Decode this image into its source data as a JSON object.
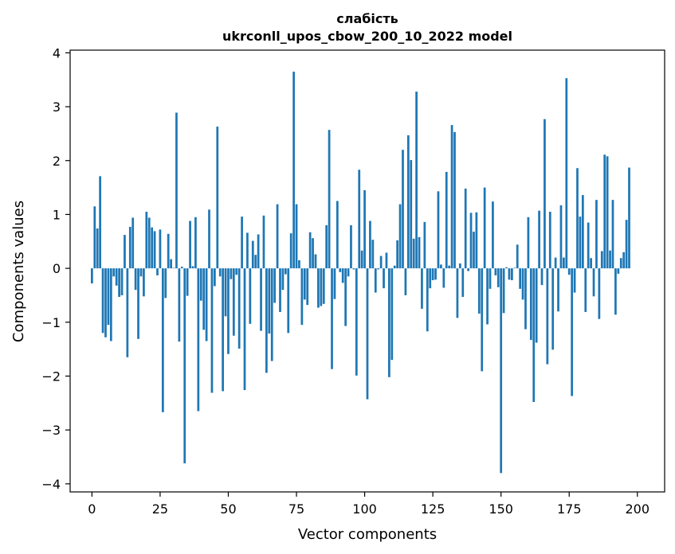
{
  "chart_data": {
    "type": "bar",
    "title_line1": "слабість",
    "title_line2": "ukrconll_upos_cbow_200_10_2022 model",
    "xlabel": "Vector components",
    "ylabel": "Components values",
    "xlim": [
      -8,
      210
    ],
    "ylim": [
      -4.15,
      4.05
    ],
    "xticks": [
      0,
      25,
      50,
      75,
      100,
      125,
      150,
      175,
      200
    ],
    "yticks": [
      4,
      3,
      2,
      1,
      0,
      -1,
      -2,
      -3,
      -4
    ],
    "ytick_labels": [
      "4",
      "3",
      "2",
      "1",
      "0",
      "−1",
      "−2",
      "−3",
      "−4"
    ],
    "grid": false,
    "bar_color": "#1f77b4",
    "values": [
      -0.28,
      1.15,
      0.74,
      1.71,
      -1.2,
      -1.28,
      -1.05,
      -1.35,
      -0.15,
      -0.32,
      -0.53,
      -0.5,
      0.62,
      -1.65,
      0.77,
      0.94,
      -0.4,
      -1.31,
      -0.15,
      -0.52,
      1.05,
      0.94,
      0.76,
      0.69,
      -0.13,
      0.72,
      -2.67,
      -0.55,
      0.64,
      0.17,
      0.01,
      2.89,
      -1.36,
      0.03,
      -3.62,
      -0.51,
      0.88,
      0.04,
      0.95,
      -2.65,
      -0.6,
      -1.14,
      -1.35,
      1.09,
      -2.31,
      -0.33,
      2.63,
      -0.15,
      -2.28,
      -0.89,
      -1.59,
      -0.2,
      -1.25,
      -0.12,
      -1.49,
      0.96,
      -2.26,
      0.66,
      -1.03,
      0.51,
      0.25,
      0.63,
      -1.16,
      0.98,
      -1.94,
      -1.21,
      -1.72,
      -0.64,
      1.19,
      -0.81,
      -0.4,
      -0.11,
      -1.2,
      0.65,
      3.65,
      1.19,
      0.15,
      -1.05,
      -0.58,
      -0.68,
      0.67,
      0.56,
      0.26,
      -0.73,
      -0.7,
      -0.66,
      0.8,
      2.57,
      -1.87,
      -0.57,
      1.25,
      -0.07,
      -0.27,
      -1.07,
      -0.15,
      0.8,
      -0.02,
      -1.99,
      1.83,
      0.33,
      1.45,
      -2.43,
      0.88,
      0.53,
      -0.45,
      -0.02,
      0.23,
      -0.37,
      0.29,
      -2.02,
      -1.7,
      0.05,
      0.52,
      1.19,
      2.2,
      -0.5,
      2.47,
      2.01,
      0.55,
      3.28,
      0.58,
      -0.75,
      0.86,
      -1.17,
      -0.37,
      -0.22,
      -0.21,
      1.43,
      0.07,
      -0.36,
      1.79,
      0.05,
      2.66,
      2.53,
      -0.92,
      0.09,
      -0.53,
      1.48,
      -0.05,
      1.03,
      0.68,
      1.04,
      -0.84,
      -1.91,
      1.5,
      -1.04,
      -0.38,
      1.24,
      -0.13,
      -0.35,
      -3.8,
      -0.83,
      0.02,
      -0.21,
      -0.22,
      0.01,
      0.44,
      -0.38,
      -0.58,
      -1.13,
      0.95,
      -1.33,
      -2.48,
      -1.38,
      1.07,
      -0.31,
      2.77,
      -1.78,
      1.05,
      -1.51,
      0.2,
      -0.8,
      1.17,
      0.2,
      3.53,
      -0.12,
      -2.37,
      -0.45,
      1.86,
      0.96,
      1.36,
      -0.81,
      0.85,
      0.19,
      -0.52,
      1.27,
      -0.94,
      0.32,
      2.11,
      2.08,
      0.33,
      1.27,
      -0.86,
      -0.1,
      0.19,
      0.3,
      0.9,
      1.87
    ]
  }
}
